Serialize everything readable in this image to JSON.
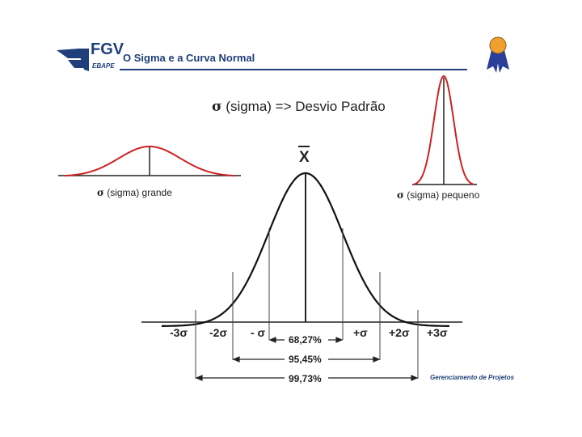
{
  "header": {
    "logo_text": "FGV",
    "logo_subtext": "EBAPE",
    "title": "O Sigma e a Curva Normal"
  },
  "main_title": "(sigma) => Desvio Padrão",
  "sigma_symbol": "σ",
  "mean_label": "X",
  "captions": {
    "large": "(sigma) grande",
    "small": "(sigma) pequeno"
  },
  "ticks": {
    "minus3": "-3σ",
    "minus2": "-2σ",
    "minus1": "- σ",
    "plus1": "+σ",
    "plus2": "+2σ",
    "plus3": "+3σ"
  },
  "percentages": {
    "one_sigma": "68,27%",
    "two_sigma": "95,45%",
    "three_sigma": "99,73%"
  },
  "footer": "Gerenciamento de Projetos",
  "colors": {
    "brand": "#1f3f7a",
    "curve_red": "#cc2222",
    "ribbon_orange": "#f0a030",
    "ribbon_blue": "#2a3f9a"
  }
}
